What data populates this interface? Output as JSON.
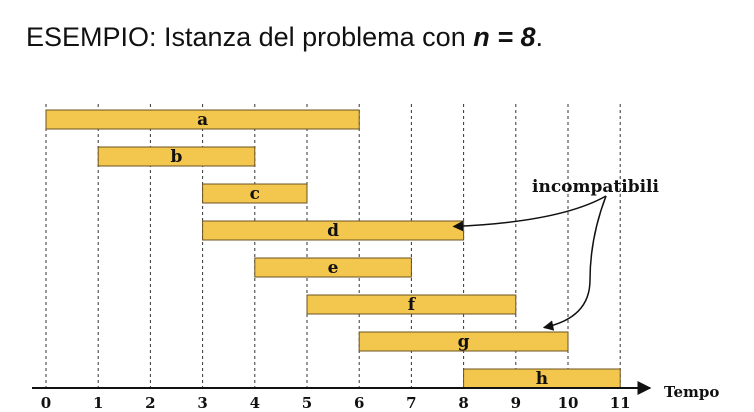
{
  "heading": {
    "prefix": "ESEMPIO: Istanza del problema con ",
    "emph": "n = 8",
    "suffix": "."
  },
  "diagram": {
    "axis_label": "Tempo",
    "ticks": [
      0,
      1,
      2,
      3,
      4,
      5,
      6,
      7,
      8,
      9,
      10,
      11
    ],
    "intervals": [
      {
        "label": "a",
        "start": 0,
        "end": 6
      },
      {
        "label": "b",
        "start": 1,
        "end": 4
      },
      {
        "label": "c",
        "start": 3,
        "end": 5
      },
      {
        "label": "d",
        "start": 3,
        "end": 8
      },
      {
        "label": "e",
        "start": 4,
        "end": 7
      },
      {
        "label": "f",
        "start": 5,
        "end": 9
      },
      {
        "label": "g",
        "start": 6,
        "end": 10
      },
      {
        "label": "h",
        "start": 8,
        "end": 11
      }
    ],
    "annotation": {
      "text": "incompatibili",
      "targets": [
        "d",
        "g"
      ]
    },
    "colors": {
      "bar_fill": "#F3C64D",
      "bar_stroke": "#6B5420",
      "gridline": "#333333",
      "axis": "#111111",
      "text": "#111111"
    }
  }
}
